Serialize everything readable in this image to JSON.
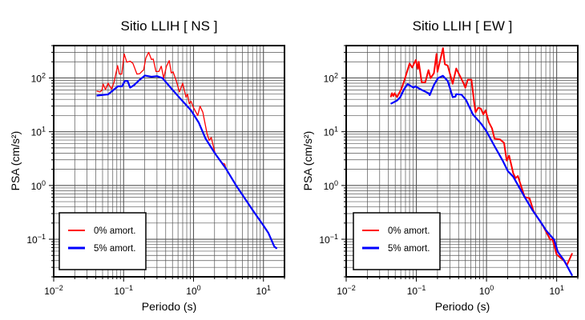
{
  "chart_data": [
    {
      "type": "line",
      "title": "Sitio LLIH [ NS ]",
      "xlabel": "Periodo (s)",
      "ylabel": "PSA (cm/s²)",
      "xscale": "log",
      "yscale": "log",
      "xlim": [
        0.01,
        20
      ],
      "ylim": [
        0.02,
        400
      ],
      "xticks": [
        {
          "base": "10",
          "exp": "−2",
          "v": 0.01
        },
        {
          "base": "10",
          "exp": "−1",
          "v": 0.1
        },
        {
          "base": "10",
          "exp": "0",
          "v": 1
        },
        {
          "base": "10",
          "exp": "1",
          "v": 10
        }
      ],
      "yticks": [
        {
          "base": "10",
          "exp": "−1",
          "v": 0.1
        },
        {
          "base": "10",
          "exp": "0",
          "v": 1
        },
        {
          "base": "10",
          "exp": "1",
          "v": 10
        },
        {
          "base": "10",
          "exp": "2",
          "v": 100
        }
      ],
      "grid": true,
      "legend_placement": "bottom-left",
      "series": [
        {
          "name": "0% amort.",
          "color": "#ff0000",
          "x": [
            0.041,
            0.046,
            0.049,
            0.051,
            0.055,
            0.06,
            0.067,
            0.073,
            0.082,
            0.087,
            0.094,
            0.102,
            0.111,
            0.124,
            0.136,
            0.155,
            0.17,
            0.185,
            0.193,
            0.208,
            0.228,
            0.25,
            0.265,
            0.29,
            0.32,
            0.345,
            0.375,
            0.41,
            0.45,
            0.48,
            0.51,
            0.56,
            0.63,
            0.7,
            0.78,
            0.82,
            0.87,
            0.92,
            1.0,
            1.15,
            1.24,
            1.36,
            1.56,
            1.68,
            1.79,
            2.04,
            2.6,
            2.8,
            2.9,
            4.1,
            7.0,
            10,
            11.8,
            14.3,
            15.6
          ],
          "y": [
            57,
            55,
            59,
            77,
            61,
            80,
            62,
            83,
            170,
            118,
            118,
            280,
            197,
            205,
            186,
            118,
            120,
            135,
            140,
            235,
            300,
            220,
            225,
            132,
            132,
            165,
            99,
            165,
            210,
            124,
            130,
            93,
            55,
            80,
            44,
            50,
            33,
            37,
            28,
            20,
            30,
            23,
            9.3,
            6.9,
            7.8,
            3.9,
            2.6,
            2.5,
            2.07,
            0.98,
            0.35,
            0.18,
            0.13,
            0.073,
            0.067
          ]
        },
        {
          "name": "5% amort.",
          "color": "#0000ff",
          "x": [
            0.041,
            0.06,
            0.083,
            0.095,
            0.104,
            0.114,
            0.124,
            0.142,
            0.17,
            0.202,
            0.25,
            0.3,
            0.36,
            0.49,
            0.64,
            0.92,
            1.19,
            1.49,
            2.04,
            2.9,
            4.1,
            7.0,
            10,
            11.8,
            14.3,
            15.6
          ],
          "y": [
            47,
            49.5,
            70,
            70,
            88,
            88,
            66,
            74,
            93,
            111,
            105,
            108,
            99,
            62,
            42,
            25,
            14.7,
            7.4,
            3.9,
            2.07,
            0.98,
            0.35,
            0.18,
            0.13,
            0.073,
            0.067
          ]
        }
      ]
    },
    {
      "type": "line",
      "title": "Sitio LLIH [ EW ]",
      "xlabel": "Periodo (s)",
      "ylabel": "PSA (cm/s²)",
      "xscale": "log",
      "yscale": "log",
      "xlim": [
        0.01,
        20
      ],
      "ylim": [
        0.02,
        400
      ],
      "xticks": [
        {
          "base": "10",
          "exp": "−2",
          "v": 0.01
        },
        {
          "base": "10",
          "exp": "−1",
          "v": 0.1
        },
        {
          "base": "10",
          "exp": "0",
          "v": 1
        },
        {
          "base": "10",
          "exp": "1",
          "v": 10
        }
      ],
      "yticks": [
        {
          "base": "10",
          "exp": "−1",
          "v": 0.1
        },
        {
          "base": "10",
          "exp": "0",
          "v": 1
        },
        {
          "base": "10",
          "exp": "1",
          "v": 10
        },
        {
          "base": "10",
          "exp": "2",
          "v": 100
        }
      ],
      "grid": true,
      "legend_placement": "bottom-left",
      "series": [
        {
          "name": "0% amort.",
          "color": "#ff0000",
          "x": [
            0.043,
            0.045,
            0.047,
            0.049,
            0.053,
            0.061,
            0.068,
            0.08,
            0.087,
            0.098,
            0.105,
            0.108,
            0.119,
            0.134,
            0.149,
            0.16,
            0.178,
            0.194,
            0.2,
            0.24,
            0.255,
            0.28,
            0.33,
            0.37,
            0.41,
            0.47,
            0.5,
            0.54,
            0.61,
            0.67,
            0.7,
            0.76,
            0.83,
            0.9,
            0.97,
            1.08,
            1.2,
            1.3,
            1.55,
            1.78,
            1.94,
            2.1,
            2.4,
            2.6,
            2.8,
            3.5,
            4.1,
            4.7,
            6.5,
            8.1,
            8.7,
            10,
            12.7,
            14,
            16.7
          ],
          "y": [
            44,
            52,
            46,
            52,
            44,
            62,
            93,
            186,
            156,
            216,
            147,
            200,
            83,
            83,
            140,
            99,
            123,
            280,
            130,
            360,
            180,
            170,
            78,
            150,
            115,
            80,
            66,
            93,
            93,
            33,
            23,
            28,
            27,
            21,
            25,
            15,
            11.5,
            7.4,
            7.2,
            6.2,
            2.9,
            3.6,
            1.7,
            1.37,
            1.5,
            0.61,
            0.58,
            0.33,
            0.17,
            0.098,
            0.1,
            0.052,
            0.04,
            0.033,
            0.055
          ]
        },
        {
          "name": "5% amort.",
          "color": "#0000ff",
          "x": [
            0.043,
            0.053,
            0.059,
            0.067,
            0.075,
            0.091,
            0.096,
            0.119,
            0.149,
            0.155,
            0.178,
            0.203,
            0.239,
            0.28,
            0.33,
            0.36,
            0.37,
            0.44,
            0.51,
            0.64,
            0.84,
            0.99,
            1.29,
            1.7,
            2.02,
            2.4,
            3.5,
            4.5,
            5.9,
            7.1,
            9.2,
            10.4,
            12.7,
            16.7
          ],
          "y": [
            33,
            38,
            44,
            62,
            77,
            66,
            70,
            60,
            52,
            48,
            74,
            99,
            110,
            88,
            44,
            45,
            50,
            49,
            39,
            21,
            14,
            10.4,
            5.5,
            2.9,
            1.84,
            1.46,
            0.61,
            0.35,
            0.21,
            0.145,
            0.098,
            0.058,
            0.041,
            0.021
          ]
        }
      ]
    }
  ]
}
